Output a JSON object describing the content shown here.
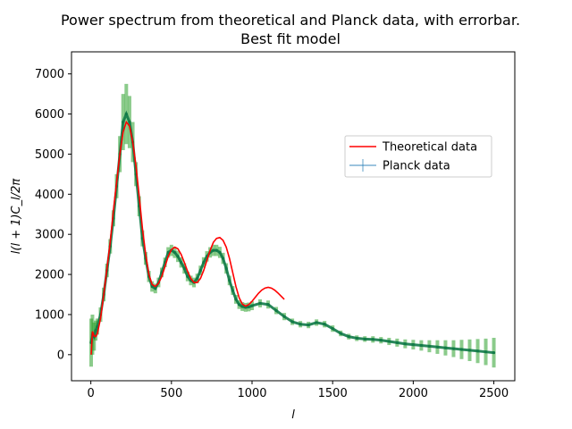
{
  "chart_data": {
    "type": "line",
    "title_line1": "Power spectrum from theoretical and Planck data, with errorbar.",
    "title_line2": "Best fit model",
    "xlabel": "l",
    "ylabel": "l(l + 1)C_l/2π",
    "xlim": [
      -120,
      2630
    ],
    "ylim": [
      -650,
      7550
    ],
    "xticks": [
      0,
      500,
      1000,
      1500,
      2000,
      2500
    ],
    "xtick_labels": [
      "0",
      "500",
      "1000",
      "1500",
      "2000",
      "2500"
    ],
    "yticks": [
      0,
      1000,
      2000,
      3000,
      4000,
      5000,
      6000,
      7000
    ],
    "ytick_labels": [
      "0",
      "1000",
      "2000",
      "3000",
      "4000",
      "5000",
      "6000",
      "7000"
    ],
    "legend_position": "center-right",
    "series": [
      {
        "name": "Theoretical data",
        "color": "#ff0000",
        "x": [
          2,
          10,
          20,
          30,
          40,
          60,
          80,
          100,
          120,
          140,
          160,
          180,
          200,
          220,
          240,
          260,
          280,
          300,
          320,
          340,
          360,
          380,
          400,
          420,
          440,
          460,
          480,
          500,
          520,
          540,
          560,
          580,
          600,
          620,
          640,
          660,
          680,
          700,
          720,
          740,
          760,
          780,
          800,
          820,
          840,
          860,
          880,
          900,
          920,
          940,
          960,
          980,
          1000,
          1020,
          1040,
          1060,
          1080,
          1100,
          1120,
          1140,
          1160,
          1180,
          1200
        ],
        "y": [
          0,
          580,
          470,
          450,
          520,
          900,
          1500,
          2150,
          2800,
          3600,
          4300,
          5000,
          5550,
          5800,
          5700,
          5300,
          4700,
          3950,
          3150,
          2500,
          2000,
          1750,
          1700,
          1780,
          1950,
          2200,
          2450,
          2620,
          2680,
          2640,
          2500,
          2300,
          2080,
          1900,
          1800,
          1800,
          1900,
          2100,
          2350,
          2600,
          2800,
          2900,
          2920,
          2850,
          2680,
          2400,
          2050,
          1700,
          1420,
          1260,
          1210,
          1250,
          1330,
          1430,
          1530,
          1610,
          1660,
          1680,
          1660,
          1610,
          1540,
          1460,
          1380
        ]
      },
      {
        "name": "Planck data",
        "color": "#1f77b4",
        "marker_color": "#117a48",
        "errorbar_color": "#2ca02c",
        "x": [
          2,
          10,
          20,
          30,
          40,
          60,
          80,
          100,
          120,
          140,
          160,
          180,
          200,
          220,
          240,
          260,
          280,
          300,
          320,
          340,
          360,
          380,
          400,
          420,
          440,
          460,
          480,
          500,
          520,
          540,
          560,
          580,
          600,
          620,
          640,
          660,
          680,
          700,
          720,
          740,
          760,
          780,
          800,
          820,
          840,
          860,
          880,
          900,
          920,
          940,
          960,
          980,
          1000,
          1050,
          1100,
          1150,
          1200,
          1250,
          1300,
          1350,
          1400,
          1450,
          1500,
          1550,
          1600,
          1650,
          1700,
          1750,
          1800,
          1850,
          1900,
          1950,
          2000,
          2050,
          2100,
          2150,
          2200,
          2250,
          2300,
          2350,
          2400,
          2450,
          2500
        ],
        "y": [
          300,
          500,
          450,
          600,
          700,
          1000,
          1500,
          2100,
          2700,
          3400,
          4200,
          5000,
          5800,
          6000,
          5800,
          5300,
          4500,
          3700,
          2900,
          2400,
          1950,
          1700,
          1650,
          1800,
          2050,
          2300,
          2550,
          2600,
          2550,
          2450,
          2300,
          2150,
          1950,
          1850,
          1800,
          1900,
          2100,
          2300,
          2450,
          2550,
          2600,
          2600,
          2550,
          2400,
          2150,
          1850,
          1600,
          1380,
          1250,
          1200,
          1180,
          1190,
          1220,
          1280,
          1250,
          1100,
          950,
          820,
          760,
          740,
          800,
          760,
          650,
          530,
          450,
          410,
          390,
          380,
          360,
          330,
          300,
          270,
          250,
          230,
          210,
          190,
          170,
          150,
          130,
          110,
          90,
          70,
          50
        ],
        "err": [
          600,
          500,
          350,
          250,
          200,
          180,
          170,
          170,
          180,
          200,
          300,
          450,
          700,
          750,
          650,
          500,
          300,
          250,
          200,
          160,
          140,
          130,
          120,
          120,
          120,
          120,
          130,
          140,
          140,
          140,
          130,
          130,
          120,
          120,
          120,
          120,
          120,
          130,
          130,
          130,
          140,
          140,
          140,
          140,
          130,
          120,
          110,
          110,
          110,
          110,
          110,
          110,
          110,
          100,
          100,
          90,
          90,
          80,
          80,
          80,
          80,
          80,
          80,
          70,
          70,
          70,
          70,
          80,
          80,
          90,
          100,
          110,
          120,
          130,
          150,
          170,
          190,
          210,
          240,
          270,
          300,
          330,
          370
        ]
      }
    ]
  }
}
